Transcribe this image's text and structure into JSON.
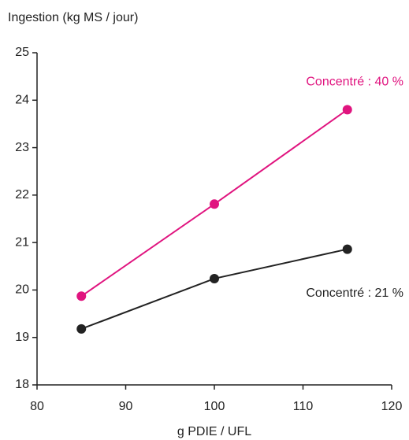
{
  "chart_data": {
    "type": "line",
    "y_label": "Ingestion  (kg MS / jour)",
    "x_label": "g PDIE / UFL",
    "x": [
      85,
      100,
      115
    ],
    "series": [
      {
        "name": "Concentré : 40 %",
        "color": "#e0147f",
        "values": [
          19.87,
          21.81,
          23.8
        ]
      },
      {
        "name": "Concentré : 21 %",
        "color": "#222222",
        "values": [
          19.18,
          20.24,
          20.86
        ]
      }
    ],
    "xlim": [
      80,
      120
    ],
    "xticks": [
      80,
      90,
      100,
      110,
      120
    ],
    "ylim": [
      18,
      25
    ],
    "yticks": [
      18,
      19,
      20,
      21,
      22,
      23,
      24,
      25
    ],
    "grid": false
  }
}
